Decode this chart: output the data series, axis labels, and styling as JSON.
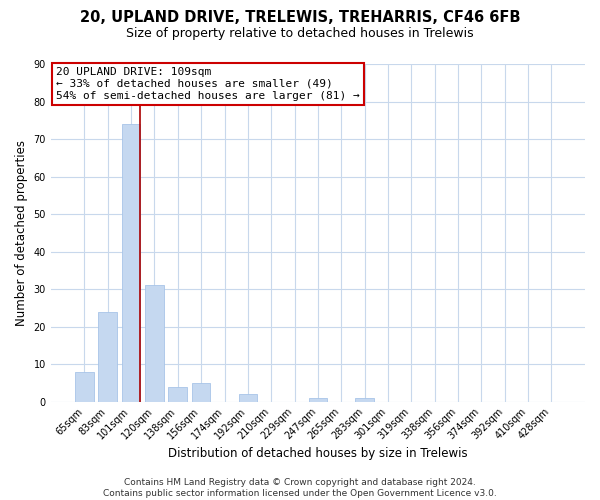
{
  "title": "20, UPLAND DRIVE, TRELEWIS, TREHARRIS, CF46 6FB",
  "subtitle": "Size of property relative to detached houses in Trelewis",
  "xlabel": "Distribution of detached houses by size in Trelewis",
  "ylabel": "Number of detached properties",
  "bar_labels": [
    "65sqm",
    "83sqm",
    "101sqm",
    "120sqm",
    "138sqm",
    "156sqm",
    "174sqm",
    "192sqm",
    "210sqm",
    "229sqm",
    "247sqm",
    "265sqm",
    "283sqm",
    "301sqm",
    "319sqm",
    "338sqm",
    "356sqm",
    "374sqm",
    "392sqm",
    "410sqm",
    "428sqm"
  ],
  "bar_values": [
    8,
    24,
    74,
    31,
    4,
    5,
    0,
    2,
    0,
    0,
    1,
    0,
    1,
    0,
    0,
    0,
    0,
    0,
    0,
    0,
    0
  ],
  "bar_color": "#c5d8f0",
  "bar_edge_color": "#a8c4e8",
  "highlight_bar_index": 2,
  "highlight_line_color": "#aa0000",
  "ylim": [
    0,
    90
  ],
  "yticks": [
    0,
    10,
    20,
    30,
    40,
    50,
    60,
    70,
    80,
    90
  ],
  "annotation_title": "20 UPLAND DRIVE: 109sqm",
  "annotation_line1": "← 33% of detached houses are smaller (49)",
  "annotation_line2": "54% of semi-detached houses are larger (81) →",
  "annotation_box_color": "#ffffff",
  "annotation_box_edge": "#cc0000",
  "footer_line1": "Contains HM Land Registry data © Crown copyright and database right 2024.",
  "footer_line2": "Contains public sector information licensed under the Open Government Licence v3.0.",
  "background_color": "#ffffff",
  "grid_color": "#c8d8ec",
  "fig_width": 6.0,
  "fig_height": 5.0,
  "title_fontsize": 10.5,
  "subtitle_fontsize": 9,
  "tick_fontsize": 7,
  "axis_label_fontsize": 8.5,
  "annotation_fontsize": 8,
  "footer_fontsize": 6.5
}
